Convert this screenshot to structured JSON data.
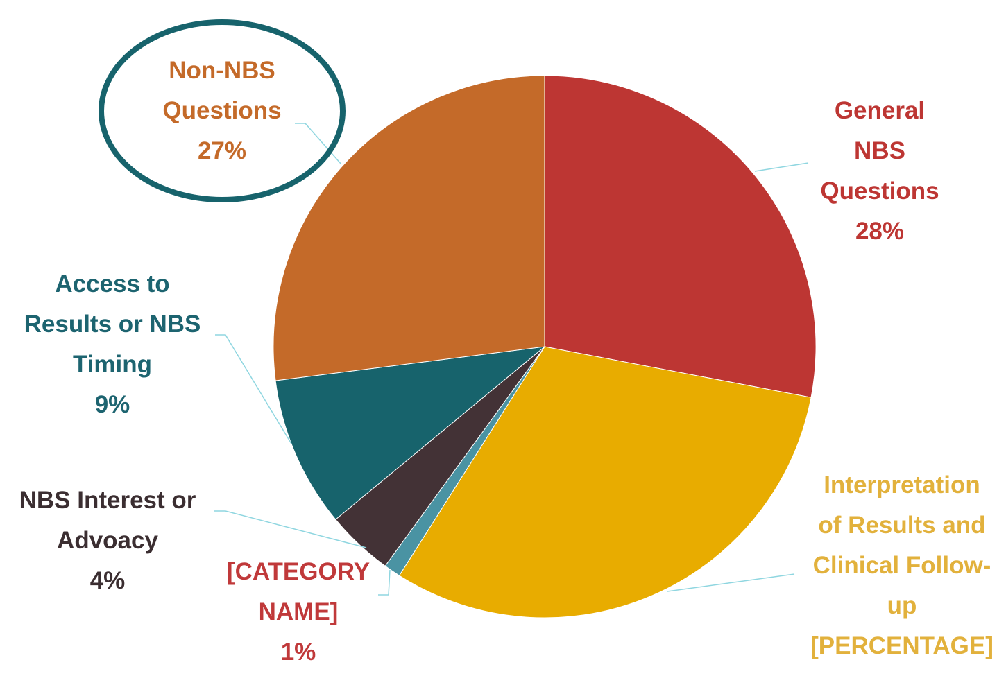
{
  "chart_data": {
    "type": "pie",
    "categories": [
      "General NBS Questions",
      "Interpretation of Results and\nClinical Follow-\nup",
      "[CATEGORY\nNAME]",
      "NBS Interest or\nAdvoacy",
      "Access to\nResults or NBS\nTiming",
      "Non-NBS\nQuestions"
    ],
    "values": [
      28,
      31,
      1,
      4,
      9,
      27
    ],
    "value_labels": [
      "28%",
      "[PERCENTAGE]",
      "1%",
      "4%",
      "9%",
      "27%"
    ],
    "colors": [
      "#bd3633",
      "#e8ac00",
      "#4a93a3",
      "#433236",
      "#17636c",
      "#c46a29"
    ],
    "label_colors": [
      "#bd3633",
      "#e2b13c",
      "#c0393a",
      "#3b2e31",
      "#1d6470",
      "#c46a29"
    ]
  }
}
